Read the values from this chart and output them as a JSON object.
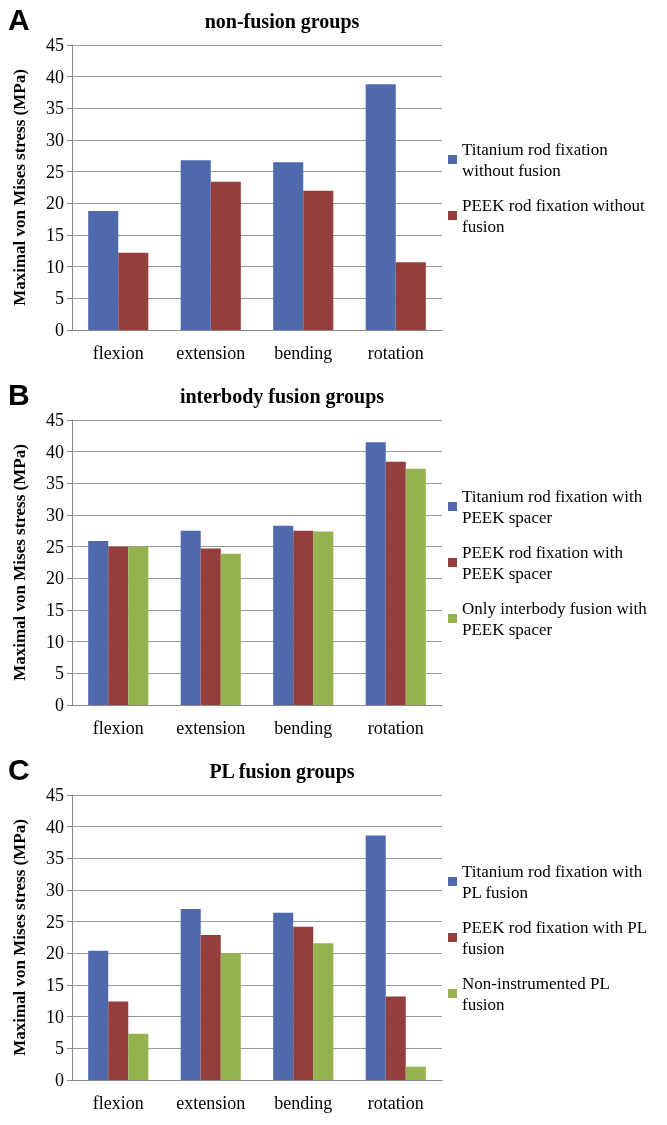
{
  "chart_data": [
    {
      "type": "bar",
      "title": "non-fusion groups",
      "annotations": [
        "A"
      ],
      "ylabel": "Maximal von Mises stress (MPa)",
      "categories": [
        "flexion",
        "extension",
        "bending",
        "rotation"
      ],
      "series": [
        {
          "name": "Titanium rod fixation without fusion",
          "color": "#4f69ad",
          "values": [
            18.8,
            26.8,
            26.5,
            38.8
          ]
        },
        {
          "name": "PEEK rod fixation without fusion",
          "color": "#943f3d",
          "values": [
            12.2,
            23.4,
            22.0,
            10.7
          ]
        }
      ],
      "ylim": [
        0,
        45
      ],
      "yticks": [
        0,
        5,
        10,
        15,
        20,
        25,
        30,
        35,
        40,
        45
      ],
      "grid": "y",
      "legend": "right"
    },
    {
      "type": "bar",
      "title": "interbody fusion groups",
      "annotations": [
        "B"
      ],
      "ylabel": "Maximal von Mises stress (MPa)",
      "categories": [
        "flexion",
        "extension",
        "bending",
        "rotation"
      ],
      "series": [
        {
          "name": "Titanium rod fixation with PEEK spacer",
          "color": "#4f69ad",
          "values": [
            25.9,
            27.5,
            28.3,
            41.5
          ]
        },
        {
          "name": "PEEK rod fixation with PEEK spacer",
          "color": "#943f3d",
          "values": [
            25.0,
            24.7,
            27.5,
            38.4
          ]
        },
        {
          "name": "Only interbody fusion with PEEK spacer",
          "color": "#94b24e",
          "values": [
            25.0,
            23.9,
            27.4,
            37.3
          ]
        }
      ],
      "ylim": [
        0,
        45
      ],
      "yticks": [
        0,
        5,
        10,
        15,
        20,
        25,
        30,
        35,
        40,
        45
      ],
      "grid": "y",
      "legend": "right"
    },
    {
      "type": "bar",
      "title": "PL fusion groups",
      "annotations": [
        "C"
      ],
      "ylabel": "Maximal von Mises stress (MPa)",
      "categories": [
        "flexion",
        "extension",
        "bending",
        "rotation"
      ],
      "series": [
        {
          "name": "Titanium rod fixation with PL fusion",
          "color": "#4f69ad",
          "values": [
            20.4,
            27.0,
            26.4,
            38.6
          ]
        },
        {
          "name": "PEEK rod fixation with PL fusion",
          "color": "#943f3d",
          "values": [
            12.4,
            22.9,
            24.2,
            13.2
          ]
        },
        {
          "name": "Non-instrumented PL fusion",
          "color": "#94b24e",
          "values": [
            7.3,
            20.0,
            21.6,
            2.1
          ]
        }
      ],
      "ylim": [
        0,
        45
      ],
      "yticks": [
        0,
        5,
        10,
        15,
        20,
        25,
        30,
        35,
        40,
        45
      ],
      "grid": "y",
      "legend": "right"
    }
  ]
}
